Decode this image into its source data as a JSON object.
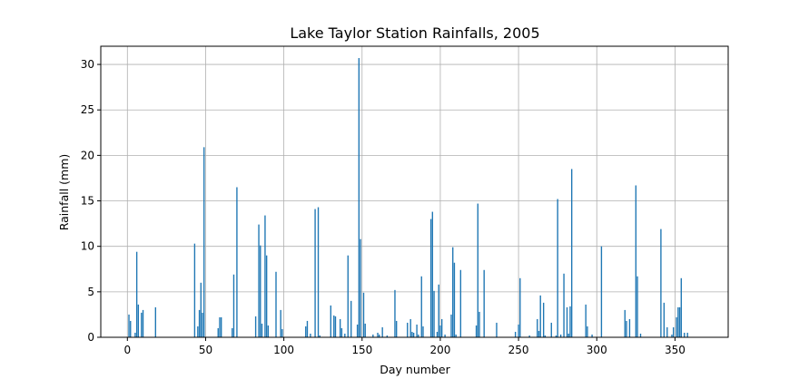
{
  "chart_data": {
    "type": "bar",
    "title": "Lake Taylor Station Rainfalls, 2005",
    "xlabel": "Day number",
    "ylabel": "Rainfall (mm)",
    "xlim": [
      -17,
      384
    ],
    "ylim": [
      0,
      32
    ],
    "xticks": [
      0,
      50,
      100,
      150,
      200,
      250,
      300,
      350
    ],
    "yticks": [
      0,
      5,
      10,
      15,
      20,
      25,
      30
    ],
    "grid": true,
    "bar_color": "#1f77b4",
    "x": [
      1,
      2,
      5,
      6,
      7,
      9,
      10,
      18,
      43,
      45,
      46,
      47,
      48,
      49,
      58,
      59,
      60,
      67,
      68,
      70,
      82,
      84,
      85,
      86,
      88,
      89,
      90,
      95,
      98,
      99,
      114,
      115,
      117,
      120,
      122,
      123,
      130,
      132,
      133,
      136,
      137,
      139,
      141,
      143,
      147,
      148,
      149,
      151,
      152,
      157,
      160,
      161,
      163,
      166,
      171,
      172,
      179,
      181,
      182,
      183,
      185,
      186,
      188,
      189,
      194,
      195,
      196,
      198,
      199,
      200,
      201,
      203,
      207,
      208,
      209,
      210,
      213,
      223,
      224,
      225,
      228,
      236,
      248,
      250,
      251,
      257,
      262,
      263,
      264,
      266,
      267,
      271,
      274,
      275,
      277,
      279,
      281,
      282,
      283,
      284,
      293,
      294,
      297,
      303,
      318,
      319,
      321,
      325,
      326,
      328,
      341,
      343,
      345,
      348,
      349,
      351,
      352,
      353,
      354,
      356,
      358
    ],
    "values": [
      2.5,
      1.8,
      0.5,
      9.4,
      3.6,
      2.7,
      3.0,
      3.3,
      10.3,
      1.2,
      3.0,
      6.0,
      2.7,
      20.9,
      1.0,
      2.2,
      2.2,
      1.0,
      6.9,
      16.5,
      2.3,
      12.4,
      10.1,
      1.5,
      13.4,
      9.0,
      1.3,
      7.2,
      3.0,
      0.9,
      1.2,
      1.8,
      0.4,
      14.1,
      14.3,
      0.2,
      3.5,
      2.4,
      2.3,
      2.0,
      1.0,
      0.4,
      9.0,
      4.0,
      1.4,
      30.7,
      10.8,
      4.9,
      1.5,
      0.3,
      0.5,
      0.3,
      1.1,
      0.2,
      5.2,
      1.8,
      1.6,
      2.0,
      0.6,
      0.5,
      1.4,
      0.3,
      6.7,
      1.2,
      13.0,
      13.8,
      5.1,
      0.6,
      5.8,
      1.3,
      2.0,
      0.3,
      2.5,
      9.9,
      8.2,
      0.3,
      7.4,
      1.3,
      14.7,
      2.8,
      7.4,
      1.6,
      0.6,
      1.4,
      6.5,
      0.2,
      2.0,
      0.7,
      4.6,
      3.8,
      0.2,
      1.6,
      0.2,
      15.2,
      0.3,
      7.0,
      3.3,
      0.4,
      3.4,
      18.5,
      3.6,
      1.2,
      0.3,
      10.0,
      3.0,
      1.8,
      2.0,
      16.7,
      6.7,
      0.4,
      11.9,
      3.8,
      1.1,
      0.3,
      1.1,
      2.2,
      3.3,
      3.3,
      6.5,
      0.5,
      0.5
    ]
  }
}
